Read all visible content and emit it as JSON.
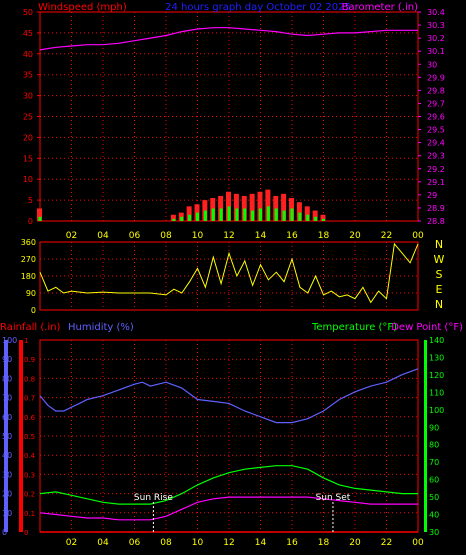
{
  "colors": {
    "background": "#000000",
    "grid": "#ff0000",
    "hour_labels": "#ffff00",
    "windspeed": "#ff0000",
    "barometer": "#ff00ff",
    "title": "#2020ff",
    "wind_direction": "#ffff00",
    "rainfall": "#ff0000",
    "humidity": "#6060ff",
    "temperature": "#00ff00",
    "dewpoint": "#ff00ff",
    "sun_marker": "#ffffff",
    "gust_bars": "#ff2020",
    "avg_bars": "#00ff00",
    "compass": "#ffff00"
  },
  "top_panel": {
    "left_title": "Windspeed (mph)",
    "center_title": "24 hours graph day   October 02 2025",
    "right_title": "Barometer (.in)"
  },
  "bottom_panel": {
    "rain_title": "Rainfall (.in)",
    "humidity_title": "Humidity (%)",
    "temp_title": "Temperature (°F)",
    "dew_title": "Dew Point (°F)"
  },
  "sun_rise_label": "Sun Rise",
  "sun_set_label": "Sun Set",
  "compass_labels": [
    "N",
    "W",
    "S",
    "E",
    "N"
  ],
  "chart_data": [
    {
      "type": "line",
      "x_unit": "hour",
      "xlim": [
        0,
        24
      ],
      "x_tick_labels": [
        "02",
        "04",
        "06",
        "08",
        "10",
        "12",
        "14",
        "16",
        "18",
        "20",
        "22",
        "00"
      ],
      "left_axis_ticks": [
        "0",
        "5",
        "10",
        "15",
        "20",
        "25",
        "30",
        "35",
        "40",
        "45",
        "50"
      ],
      "right_axis_ticks": [
        "28.8",
        "28.9",
        "29",
        "29.1",
        "29.2",
        "29.3",
        "29.4",
        "29.5",
        "29.6",
        "29.7",
        "29.8",
        "29.9",
        "30",
        "30.1",
        "30.2",
        "30.3",
        "30.4"
      ],
      "left_ylim": [
        0,
        50
      ],
      "right_ylim": [
        28.8,
        30.4
      ],
      "series": [
        {
          "name": "Barometer (.in)",
          "axis": "right",
          "x": [
            0,
            1,
            2,
            3,
            4,
            5,
            6,
            7,
            8,
            9,
            10,
            11,
            12,
            13,
            14,
            15,
            16,
            17,
            18,
            19,
            20,
            21,
            22,
            23,
            24
          ],
          "y": [
            30.11,
            30.13,
            30.14,
            30.15,
            30.15,
            30.16,
            30.18,
            30.2,
            30.22,
            30.25,
            30.27,
            30.28,
            30.28,
            30.27,
            30.26,
            30.25,
            30.23,
            30.22,
            30.23,
            30.24,
            30.24,
            30.25,
            30.26,
            30.26,
            30.26
          ]
        },
        {
          "name": "Windspeed (mph)",
          "axis": "left",
          "x": [
            0,
            0.5,
            8,
            8.5,
            9,
            9.5,
            10,
            10.5,
            11,
            11.5,
            12,
            12.5,
            13,
            13.5,
            14,
            14.5,
            15,
            15.5,
            16,
            16.5,
            17,
            17.5,
            18,
            18.5,
            24
          ],
          "y": [
            1,
            0,
            0,
            0.5,
            1,
            1.5,
            2,
            2.5,
            3,
            3,
            3.5,
            3,
            3,
            2.5,
            3,
            3.5,
            3,
            2.5,
            3,
            2,
            1.5,
            1,
            0.5,
            0,
            0
          ],
          "gust": [
            3,
            0,
            0,
            1.5,
            2,
            3.5,
            4,
            5,
            5.5,
            6,
            7,
            6.5,
            6,
            6.5,
            7,
            7.5,
            6,
            6.5,
            5.5,
            4.5,
            3.5,
            2.5,
            1.5,
            0,
            0
          ]
        }
      ]
    },
    {
      "type": "line",
      "x_unit": "hour",
      "xlim": [
        0,
        24
      ],
      "y_axis_ticks": [
        "0",
        "90",
        "180",
        "270",
        "360"
      ],
      "ylim": [
        0,
        360
      ],
      "series": [
        {
          "name": "Wind direction",
          "x": [
            0,
            0.5,
            1,
            1.5,
            2,
            3,
            4,
            5,
            6,
            7,
            8,
            8.5,
            9,
            9.5,
            10,
            10.5,
            11,
            11.5,
            12,
            12.5,
            13,
            13.5,
            14,
            14.5,
            15,
            15.5,
            16,
            16.5,
            17,
            17.5,
            18,
            18.5,
            19,
            19.5,
            20,
            20.5,
            21,
            21.5,
            22,
            22.5,
            23,
            23.5,
            24
          ],
          "y": [
            200,
            100,
            120,
            90,
            100,
            90,
            95,
            90,
            90,
            90,
            80,
            110,
            90,
            150,
            220,
            120,
            280,
            140,
            300,
            180,
            260,
            130,
            240,
            160,
            200,
            150,
            270,
            120,
            90,
            180,
            80,
            100,
            70,
            80,
            60,
            120,
            40,
            100,
            60,
            350,
            300,
            250,
            350
          ]
        }
      ]
    },
    {
      "type": "line",
      "x_unit": "hour",
      "xlim": [
        0,
        24
      ],
      "x_tick_labels": [
        "02",
        "04",
        "06",
        "08",
        "10",
        "12",
        "14",
        "16",
        "18",
        "20",
        "22",
        "00"
      ],
      "humidity_axis_ticks": [
        "0",
        "10",
        "20",
        "30",
        "40",
        "50",
        "60",
        "70",
        "80",
        "90",
        "100"
      ],
      "rain_axis_ticks": [
        "0",
        "0.1",
        "0.2",
        "0.3",
        "0.4",
        "0.5",
        "0.6",
        "0.7",
        "0.8",
        "0.9",
        "1"
      ],
      "temp_axis_ticks": [
        "30",
        "40",
        "50",
        "60",
        "70",
        "80",
        "90",
        "100",
        "110",
        "120",
        "130",
        "140"
      ],
      "humidity_ylim": [
        0,
        100
      ],
      "rain_ylim": [
        0,
        1
      ],
      "temp_ylim": [
        30,
        140
      ],
      "sun_rise_hour": 7.2,
      "sun_set_hour": 18.6,
      "series": [
        {
          "name": "Humidity (%)",
          "axis": "humidity",
          "x": [
            0,
            0.5,
            1,
            1.5,
            2,
            2.5,
            3,
            4,
            5,
            6,
            6.5,
            7,
            7.5,
            8,
            9,
            10,
            11,
            12,
            13,
            14,
            15,
            16,
            17,
            18,
            19,
            20,
            21,
            22,
            23,
            24
          ],
          "y": [
            71,
            66,
            63,
            63,
            65,
            67,
            69,
            71,
            74,
            77,
            78,
            76,
            77,
            78,
            75,
            69,
            68,
            67,
            63,
            60,
            57,
            57,
            59,
            63,
            69,
            73,
            76,
            78,
            82,
            85
          ]
        },
        {
          "name": "Temperature (°F)",
          "axis": "temp",
          "x": [
            0,
            1,
            2,
            3,
            4,
            5,
            6,
            7,
            8,
            9,
            10,
            11,
            12,
            13,
            14,
            15,
            16,
            17,
            18,
            19,
            20,
            21,
            22,
            23,
            24
          ],
          "y": [
            52,
            53,
            51,
            49,
            47,
            46,
            46,
            46,
            48,
            52,
            57,
            61,
            64,
            66,
            67,
            68,
            68,
            66,
            61,
            57,
            55,
            54,
            53,
            52,
            52
          ]
        },
        {
          "name": "Dew Point (°F)",
          "axis": "temp",
          "x": [
            0,
            1,
            2,
            3,
            4,
            5,
            6,
            7,
            8,
            9,
            10,
            11,
            12,
            13,
            14,
            15,
            16,
            17,
            18,
            19,
            20,
            21,
            22,
            23,
            24
          ],
          "y": [
            41,
            40,
            39,
            38,
            38,
            37,
            37,
            37,
            39,
            43,
            47,
            49,
            50,
            50,
            50,
            50,
            50,
            50,
            49,
            48,
            47,
            46,
            46,
            46,
            46
          ]
        },
        {
          "name": "Rainfall (.in)",
          "axis": "rain",
          "x": [
            0,
            24
          ],
          "y": [
            0,
            0
          ]
        }
      ]
    }
  ]
}
